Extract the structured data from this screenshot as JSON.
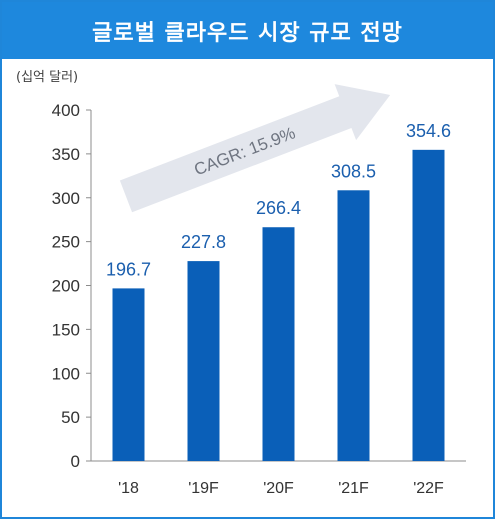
{
  "header": {
    "title": "글로벌 클라우드 시장 규모 전망"
  },
  "unit_label": "(십억 달러)",
  "colors": {
    "title_bar": "#1e88dd",
    "bar": "#0a5fb8",
    "data_label": "#1b5fae",
    "arrow": "#e3e6ed"
  },
  "chart_data": {
    "type": "bar",
    "title": "글로벌 클라우드 시장 규모 전망",
    "ylabel": "(십억 달러)",
    "xlabel": "",
    "categories": [
      "'18",
      "'19F",
      "'20F",
      "'21F",
      "'22F"
    ],
    "values": [
      196.7,
      227.8,
      266.4,
      308.5,
      354.6
    ],
    "value_labels": [
      "196.7",
      "227.8",
      "266.4",
      "308.5",
      "354.6"
    ],
    "ylim": [
      0,
      400
    ],
    "yticks": [
      0,
      50,
      100,
      150,
      200,
      250,
      300,
      350,
      400
    ],
    "grid": false,
    "legend": "none",
    "annotation": "CAGR: 15.9%"
  }
}
